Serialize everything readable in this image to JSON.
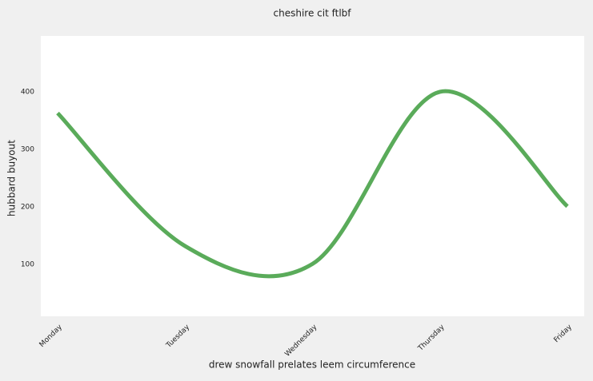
{
  "chart_data": {
    "type": "line",
    "title": "cheshire cit ftlbf",
    "x_label": "drew snowfall prelates leem circumference",
    "y_label": "hubbard buyout",
    "categories": [
      "Monday",
      "Tuesday",
      "Wednesday",
      "Thursday",
      "Friday"
    ],
    "series": [
      {
        "name": "hubbard buyout",
        "color": "#5aab5a",
        "values": [
          363,
          132,
          101,
          400,
          201
        ]
      }
    ],
    "ylim": [
      10,
      497
    ],
    "yticks": [
      100,
      200,
      300,
      400
    ],
    "grid": false,
    "smooth": true
  }
}
